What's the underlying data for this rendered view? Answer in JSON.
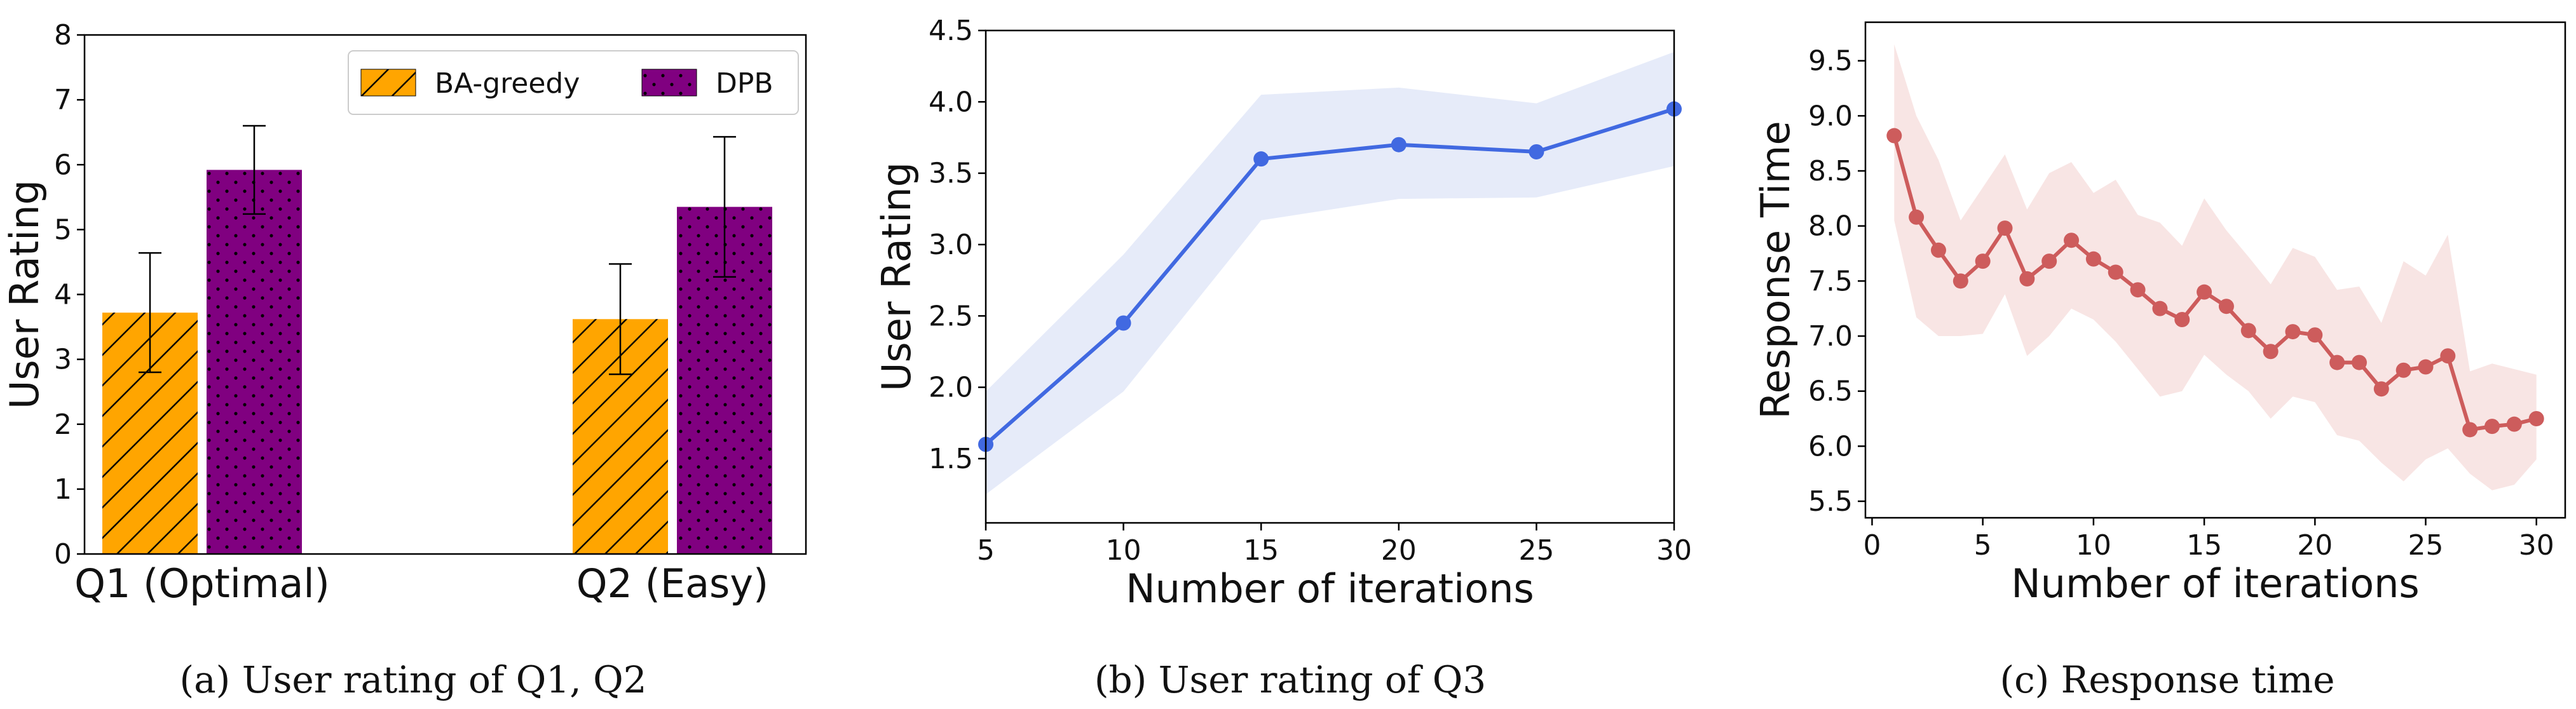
{
  "chart_data": [
    {
      "type": "bar",
      "title": "",
      "xlabel": "",
      "ylabel": "User Rating",
      "ylim": [
        0,
        8
      ],
      "yticks": [
        0,
        1,
        2,
        3,
        4,
        5,
        6,
        7,
        8
      ],
      "categories": [
        "Q1 (Optimal)",
        "Q2 (Easy)"
      ],
      "series": [
        {
          "name": "BA-greedy",
          "values": [
            3.72,
            3.62
          ],
          "error": [
            0.92,
            0.85
          ],
          "color": "#FFA500",
          "hatch": "diagonal"
        },
        {
          "name": "DPB",
          "values": [
            5.92,
            5.35
          ],
          "error": [
            0.68,
            1.08
          ],
          "color": "#800080",
          "hatch": "dots"
        }
      ],
      "legend": "top-right",
      "caption": "(a)  User rating of Q1, Q2"
    },
    {
      "type": "line",
      "title": "",
      "xlabel": "Number of iterations",
      "ylabel": "User Rating",
      "xlim": [
        5,
        30
      ],
      "ylim": [
        1.05,
        4.5
      ],
      "xticks": [
        5,
        10,
        15,
        20,
        25,
        30
      ],
      "yticks": [
        1.5,
        2.0,
        2.5,
        3.0,
        3.5,
        4.0,
        4.5
      ],
      "ytick_labels": [
        "1.5",
        "2.0",
        "2.5",
        "3.0",
        "3.5",
        "4.0",
        "4.5"
      ],
      "x": [
        5,
        10,
        15,
        20,
        25,
        30
      ],
      "y": [
        1.6,
        2.45,
        3.6,
        3.7,
        3.65,
        3.95
      ],
      "y_lower": [
        1.25,
        1.97,
        3.17,
        3.32,
        3.33,
        3.55
      ],
      "y_upper": [
        1.97,
        2.93,
        4.05,
        4.1,
        3.99,
        4.35
      ],
      "color": "#4169E1",
      "band_color": "#E6EBF9",
      "caption": "(b)  User rating of Q3"
    },
    {
      "type": "line",
      "title": "",
      "xlabel": "Number of iterations",
      "ylabel": "Response Time",
      "xlim": [
        -0.3,
        31.3
      ],
      "ylim": [
        5.35,
        9.85
      ],
      "xticks": [
        0,
        5,
        10,
        15,
        20,
        25,
        30
      ],
      "yticks": [
        5.5,
        6.0,
        6.5,
        7.0,
        7.5,
        8.0,
        8.5,
        9.0,
        9.5
      ],
      "ytick_labels": [
        "5.5",
        "6.0",
        "6.5",
        "7.0",
        "7.5",
        "8.0",
        "8.5",
        "9.0",
        "9.5"
      ],
      "x": [
        1,
        2,
        3,
        4,
        5,
        6,
        7,
        8,
        9,
        10,
        11,
        12,
        13,
        14,
        15,
        16,
        17,
        18,
        19,
        20,
        21,
        22,
        23,
        24,
        25,
        26,
        27,
        28,
        29,
        30
      ],
      "y": [
        8.82,
        8.08,
        7.78,
        7.5,
        7.68,
        7.98,
        7.52,
        7.68,
        7.87,
        7.7,
        7.58,
        7.42,
        7.25,
        7.15,
        7.4,
        7.27,
        7.05,
        6.86,
        7.04,
        7.01,
        6.76,
        6.76,
        6.52,
        6.69,
        6.72,
        6.82,
        6.15,
        6.18,
        6.2,
        6.25
      ],
      "y_lower": [
        8.05,
        7.17,
        7.0,
        7.0,
        7.02,
        7.38,
        6.82,
        7.0,
        7.25,
        7.15,
        6.95,
        6.7,
        6.45,
        6.5,
        6.83,
        6.65,
        6.5,
        6.25,
        6.45,
        6.4,
        6.1,
        6.05,
        5.85,
        5.68,
        5.88,
        5.98,
        5.75,
        5.6,
        5.65,
        5.88
      ],
      "y_upper": [
        9.65,
        9.0,
        8.6,
        8.05,
        8.35,
        8.65,
        8.15,
        8.48,
        8.58,
        8.3,
        8.42,
        8.1,
        8.03,
        7.82,
        8.25,
        7.96,
        7.72,
        7.47,
        7.8,
        7.72,
        7.42,
        7.45,
        7.12,
        7.68,
        7.55,
        7.92,
        6.68,
        6.75,
        6.7,
        6.65
      ],
      "color": "#CD5C5C",
      "band_color": "#F8E5E4",
      "caption": "(c)  Response time"
    }
  ]
}
